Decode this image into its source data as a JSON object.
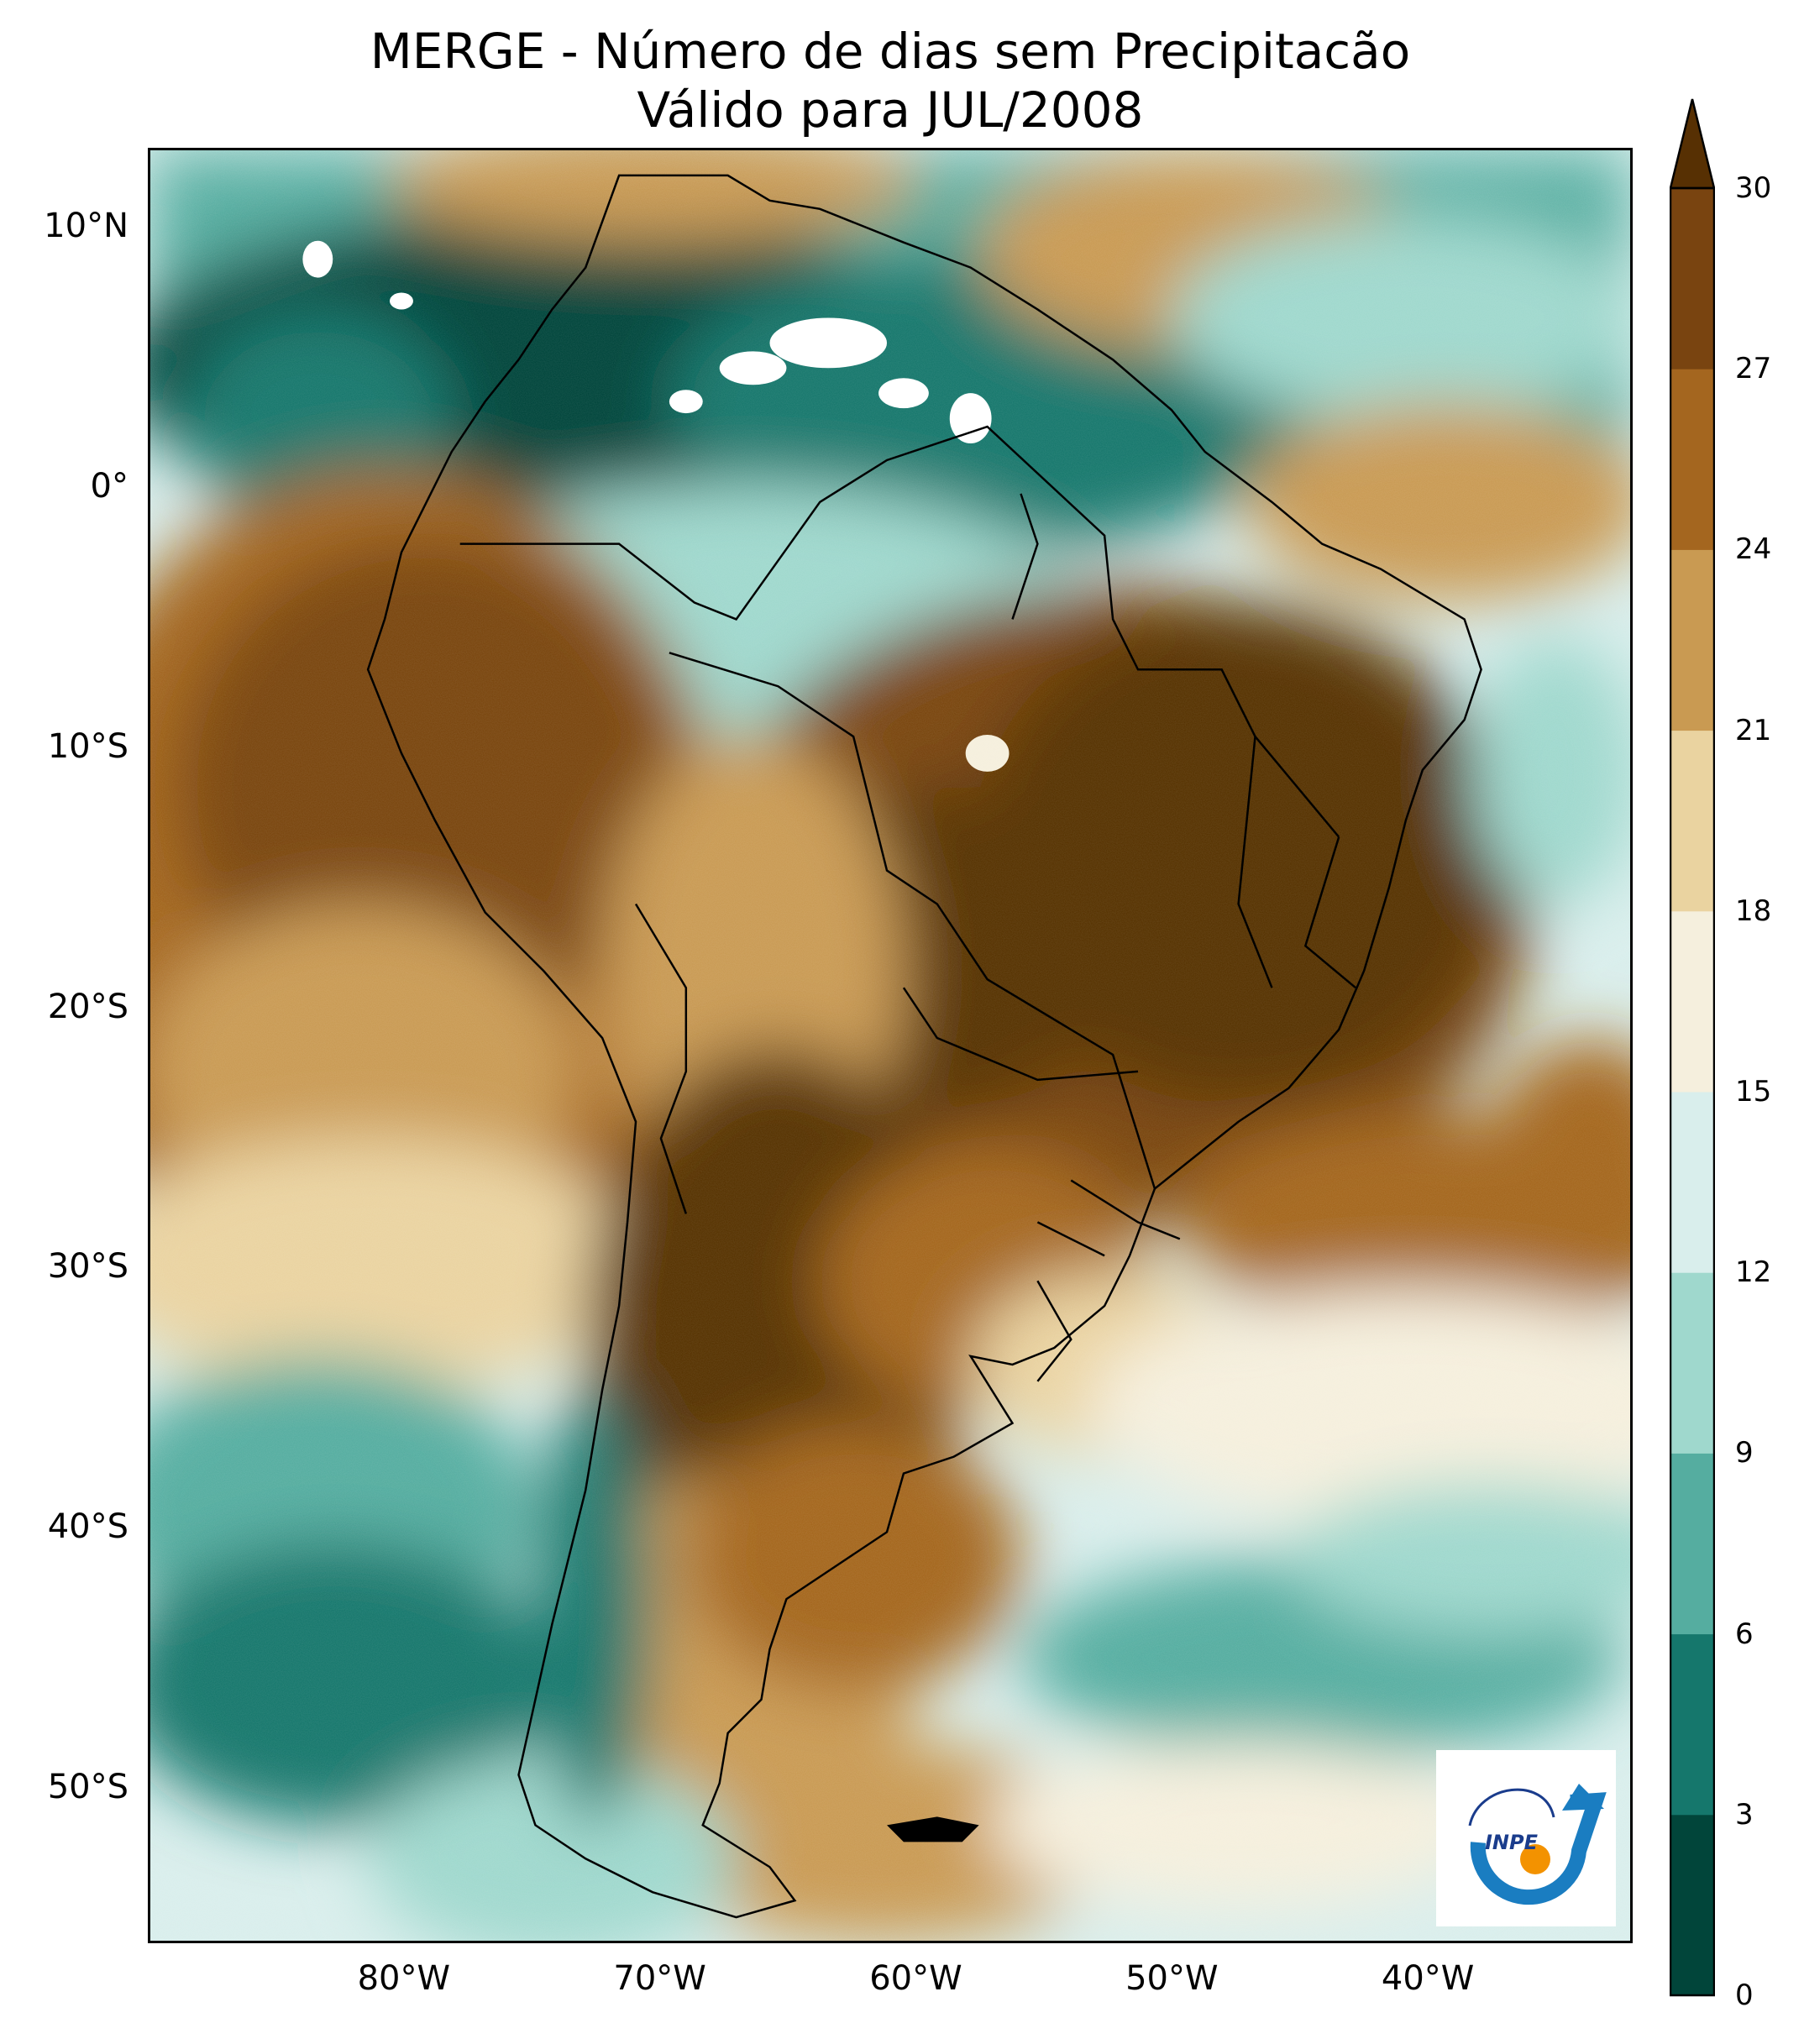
{
  "title": {
    "line1": "MERGE - Número de dias sem Precipitacão",
    "line2": "Válido para JUL/2008"
  },
  "axes": {
    "lat_ticks": [
      {
        "label": "10°N",
        "value": 10
      },
      {
        "label": "0°",
        "value": 0
      },
      {
        "label": "10°S",
        "value": -10
      },
      {
        "label": "20°S",
        "value": -20
      },
      {
        "label": "30°S",
        "value": -30
      },
      {
        "label": "40°S",
        "value": -40
      },
      {
        "label": "50°S",
        "value": -50
      }
    ],
    "lon_ticks": [
      {
        "label": "80°W",
        "value": -80
      },
      {
        "label": "70°W",
        "value": -70
      },
      {
        "label": "60°W",
        "value": -60
      },
      {
        "label": "50°W",
        "value": -50
      },
      {
        "label": "40°W",
        "value": -40
      }
    ],
    "lon_range": [
      -90,
      -32
    ],
    "lat_range": [
      -56,
      13
    ]
  },
  "colorbar": {
    "ticks": [
      "0",
      "3",
      "6",
      "9",
      "12",
      "15",
      "18",
      "21",
      "24",
      "27",
      "30"
    ],
    "levels": [
      0,
      3,
      6,
      9,
      12,
      15,
      18,
      21,
      24,
      27,
      30
    ],
    "colors": [
      "#01453a",
      "#15776c",
      "#55ada0",
      "#9fd8cd",
      "#d9eeec",
      "#f5efdd",
      "#ead3a0",
      "#c99a52",
      "#a4661f",
      "#794410",
      "#573003"
    ],
    "extend": "max"
  },
  "logo": {
    "text": "INPE"
  }
}
